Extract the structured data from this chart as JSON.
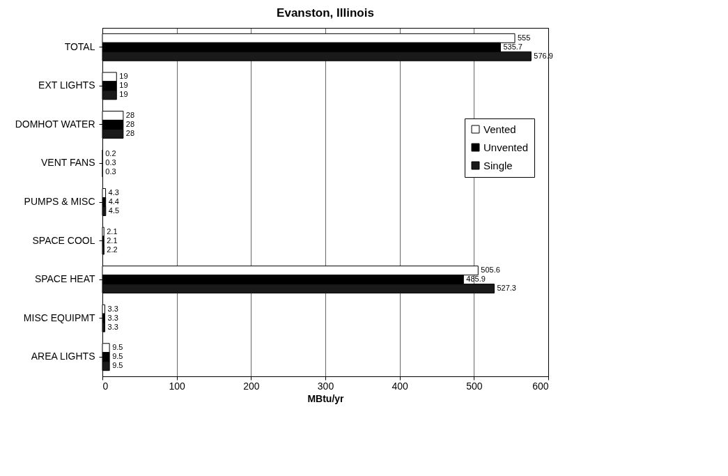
{
  "chart_data": {
    "type": "bar",
    "orientation": "horizontal",
    "title": "Evanston, Illinois",
    "xlabel": "MBtu/yr",
    "categories": [
      "TOTAL",
      "EXT LIGHTS",
      "DOMHOT WATER",
      "VENT FANS",
      "PUMPS & MISC",
      "SPACE COOL",
      "SPACE HEAT",
      "MISC EQUIPMT",
      "AREA LIGHTS"
    ],
    "series": [
      {
        "name": "Vented",
        "color": "#ffffff",
        "values": [
          555,
          19,
          28,
          0.2,
          4.3,
          2.1,
          505.6,
          3.3,
          9.5
        ],
        "value_labels": [
          "555",
          "19",
          "28",
          "0.2",
          "4.3",
          "2.1",
          "505.6",
          "3.3",
          "9.5"
        ]
      },
      {
        "name": "Unvented",
        "color": "#000000",
        "values": [
          535.7,
          19,
          28,
          0.3,
          4.4,
          2.1,
          485.9,
          3.3,
          9.5
        ],
        "value_labels": [
          "535.7",
          "19",
          "28",
          "0.3",
          "4.4",
          "2.1",
          "485.9",
          "3.3",
          "9.5"
        ]
      },
      {
        "name": "Single",
        "color": "#1a1a1a",
        "values": [
          576.9,
          19,
          28,
          0.3,
          4.5,
          2.2,
          527.3,
          3.3,
          9.5
        ],
        "value_labels": [
          "576.9",
          "19",
          "28",
          "0.3",
          "4.5",
          "2.2",
          "527.3",
          "3.3",
          "9.5"
        ]
      }
    ],
    "xlim": [
      0,
      600
    ],
    "xticks": [
      0,
      100,
      200,
      300,
      400,
      500,
      600
    ],
    "grid": "x",
    "legend": "right"
  }
}
